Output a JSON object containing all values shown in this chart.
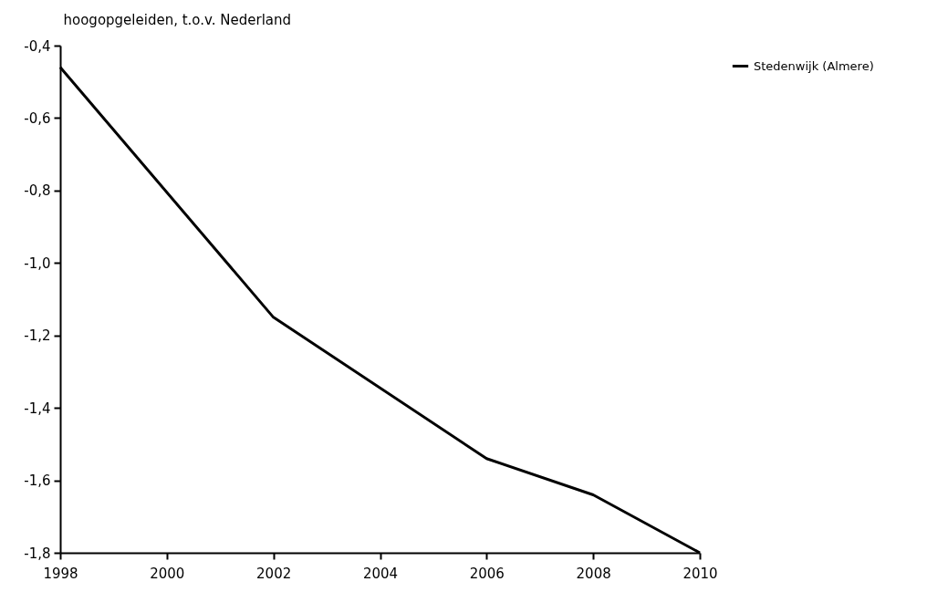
{
  "chart_data": {
    "type": "line",
    "ylabel": "hoogopgeleiden, t.o.v. Nederland",
    "x": [
      1998,
      2002,
      2006,
      2008,
      2010
    ],
    "series": [
      {
        "name": "Stedenwijk (Almere)",
        "color": "#000000",
        "values": [
          -0.46,
          -1.15,
          -1.54,
          -1.64,
          -1.8
        ]
      }
    ],
    "xlim": [
      1998,
      2010
    ],
    "xticks": [
      1998,
      2000,
      2002,
      2004,
      2006,
      2008,
      2010
    ],
    "ylim": [
      -1.8,
      -0.4
    ],
    "yticks": [
      {
        "value": -1.8,
        "label": "-1,8"
      },
      {
        "value": -1.6,
        "label": "-1,6"
      },
      {
        "value": -1.4,
        "label": "-1,4"
      },
      {
        "value": -1.2,
        "label": "-1,2"
      },
      {
        "value": -1.0,
        "label": "-1,0"
      },
      {
        "value": -0.8,
        "label": "-0,8"
      },
      {
        "value": -0.6,
        "label": "-0,6"
      },
      {
        "value": -0.4,
        "label": "-0,4"
      }
    ],
    "grid": false,
    "legend": "top right",
    "marker": "none",
    "line_style": "solid"
  }
}
